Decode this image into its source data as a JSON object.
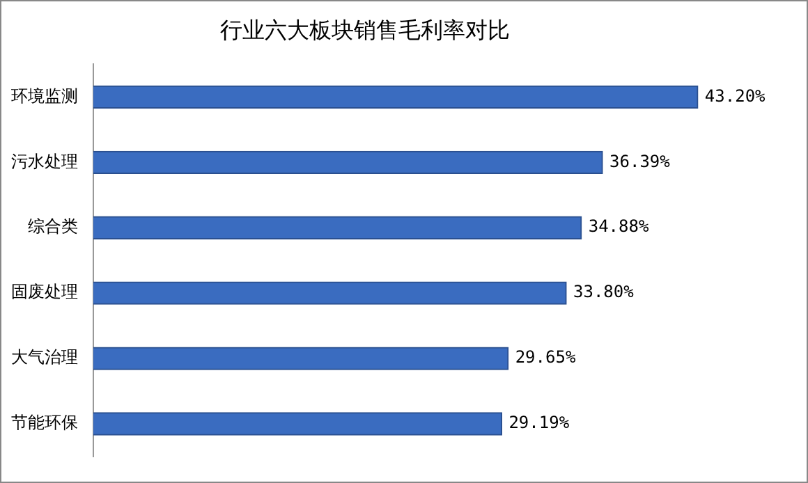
{
  "chart_data": {
    "type": "bar",
    "orientation": "horizontal",
    "title": "行业六大板块销售毛利率对比",
    "categories": [
      "环境监测",
      "污水处理",
      "综合类",
      "固废处理",
      "大气治理",
      "节能环保"
    ],
    "values": [
      43.2,
      36.39,
      34.88,
      33.8,
      29.65,
      29.19
    ],
    "value_labels": [
      "43.20%",
      "36.39%",
      "34.88%",
      "33.80%",
      "29.65%",
      "29.19%"
    ],
    "color": "#3a6cc0",
    "grid": false,
    "legend": false
  }
}
